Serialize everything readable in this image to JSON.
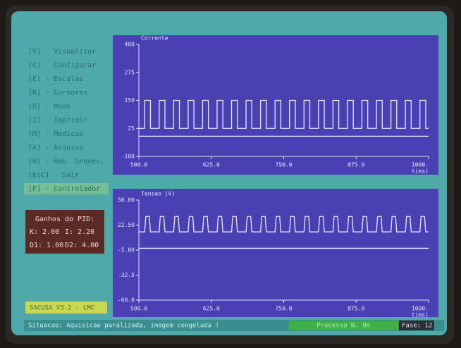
{
  "menu": [
    "[V] - Visualizar",
    "[C] - Configurar",
    "[E] - Escalas",
    "[R] - Cursores",
    "[O] - Modo",
    "[I] - Imprimir",
    "[M] - Medicao",
    "[A] - Arquivo",
    "[H] - Hab. Sequec.",
    "[ESC] - Sair",
    "[F] - Controlador"
  ],
  "gains": {
    "title": "Ganhos do PID:",
    "k": "K: 2.00",
    "i": "I: 2.20",
    "d1": "D1: 1.00",
    "d2": "D2: 4.00"
  },
  "version": "SACUSA V3.2 - LMC",
  "status": {
    "message": "Situacao: Aquisicao paralizada, imagem congelada !",
    "process": "Processo N. On",
    "phase": "Fase: 12"
  },
  "chart_data": [
    {
      "type": "line",
      "title": "Corrente",
      "x_label": "t(ms)",
      "xlim": [
        500,
        1000
      ],
      "ylim": [
        -100,
        400
      ],
      "xticks": [
        {
          "value": 500,
          "label": "500.0"
        },
        {
          "value": 625,
          "label": "625.0"
        },
        {
          "value": 750,
          "label": "750.0"
        },
        {
          "value": 875,
          "label": "875.0"
        },
        {
          "value": 1000,
          "label": "1000."
        }
      ],
      "yticks": [
        400,
        275,
        150,
        25,
        -100
      ],
      "series": [
        {
          "color": "#e6ecff",
          "x": [
            500,
            510,
            510,
            520,
            520,
            535,
            535,
            545,
            545,
            560,
            560,
            570,
            570,
            585,
            585,
            595,
            595,
            610,
            610,
            620,
            620,
            635,
            635,
            645,
            645,
            660,
            660,
            670,
            670,
            685,
            685,
            695,
            695,
            710,
            710,
            720,
            720,
            735,
            735,
            745,
            745,
            760,
            760,
            770,
            770,
            785,
            785,
            795,
            795,
            810,
            810,
            820,
            820,
            835,
            835,
            845,
            845,
            860,
            860,
            870,
            870,
            885,
            885,
            895,
            895,
            910,
            910,
            920,
            920,
            935,
            935,
            945,
            945,
            960,
            960,
            970,
            970,
            985,
            985,
            995,
            995,
            1000
          ],
          "values": [
            25,
            25,
            150,
            150,
            25,
            25,
            150,
            150,
            25,
            25,
            150,
            150,
            25,
            25,
            150,
            150,
            25,
            25,
            150,
            150,
            25,
            25,
            150,
            150,
            25,
            25,
            150,
            150,
            25,
            25,
            150,
            150,
            25,
            25,
            150,
            150,
            25,
            25,
            150,
            150,
            25,
            25,
            150,
            150,
            25,
            25,
            150,
            150,
            25,
            25,
            150,
            150,
            25,
            25,
            150,
            150,
            25,
            25,
            150,
            150,
            25,
            25,
            150,
            150,
            25,
            25,
            150,
            150,
            25,
            25,
            150,
            150,
            25,
            25,
            150,
            150,
            25,
            25,
            150,
            150,
            25,
            25
          ]
        },
        {
          "color": "#e6ecff",
          "x": [
            500,
            1000
          ],
          "values": [
            -10,
            -10
          ]
        }
      ]
    },
    {
      "type": "line",
      "title": "Tensao (V)",
      "x_label": "t(ms)",
      "xlim": [
        500,
        1000
      ],
      "ylim": [
        -60,
        50
      ],
      "xticks": [
        {
          "value": 500,
          "label": "500.0"
        },
        {
          "value": 625,
          "label": "625.0"
        },
        {
          "value": 750,
          "label": "750.0"
        },
        {
          "value": 875,
          "label": "875.0"
        },
        {
          "value": 1000,
          "label": "1000."
        }
      ],
      "yticks": [
        {
          "value": 50,
          "label": "50.00"
        },
        {
          "value": 22.5,
          "label": "22.50"
        },
        {
          "value": -5,
          "label": "-5.00"
        },
        {
          "value": -32.5,
          "label": "-32.5"
        },
        {
          "value": -60,
          "label": "-60.0"
        }
      ],
      "series": [
        {
          "color": "#e6ecff",
          "x": [
            500,
            510,
            512,
            518,
            520,
            535,
            537,
            543,
            545,
            560,
            562,
            568,
            570,
            585,
            587,
            593,
            595,
            610,
            612,
            618,
            620,
            635,
            637,
            643,
            645,
            660,
            662,
            668,
            670,
            685,
            687,
            693,
            695,
            710,
            712,
            718,
            720,
            735,
            737,
            743,
            745,
            760,
            762,
            768,
            770,
            785,
            787,
            793,
            795,
            810,
            812,
            818,
            820,
            835,
            837,
            843,
            845,
            860,
            862,
            868,
            870,
            885,
            887,
            893,
            895,
            910,
            912,
            918,
            920,
            935,
            937,
            943,
            945,
            960,
            962,
            968,
            970,
            985,
            987,
            993,
            995,
            1000
          ],
          "values": [
            15,
            15,
            32,
            32,
            15,
            15,
            32,
            32,
            15,
            15,
            32,
            32,
            15,
            15,
            32,
            32,
            15,
            15,
            32,
            32,
            15,
            15,
            32,
            32,
            15,
            15,
            32,
            32,
            15,
            15,
            32,
            32,
            15,
            15,
            32,
            32,
            15,
            15,
            32,
            32,
            15,
            15,
            32,
            32,
            15,
            15,
            32,
            32,
            15,
            15,
            32,
            32,
            15,
            15,
            32,
            32,
            15,
            15,
            32,
            32,
            15,
            15,
            32,
            32,
            15,
            15,
            32,
            32,
            15,
            15,
            32,
            32,
            15,
            15,
            32,
            32,
            15,
            15,
            32,
            32,
            15,
            15
          ]
        },
        {
          "color": "#e6ecff",
          "x": [
            500,
            1000
          ],
          "values": [
            -3,
            -3
          ]
        }
      ]
    }
  ]
}
